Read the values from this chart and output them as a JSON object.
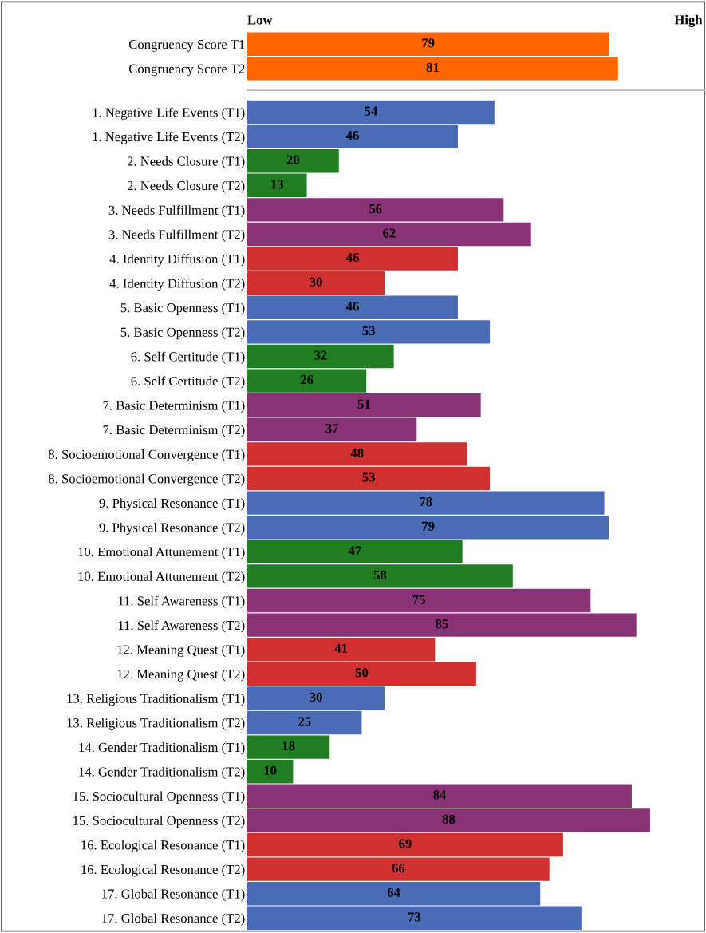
{
  "chart_data": [
    {
      "type": "bar",
      "orientation": "horizontal",
      "categories": [
        "Congruency Score T1",
        "Congruency Score T2"
      ],
      "values": [
        79,
        81
      ],
      "color": "#ff6600",
      "annotations": [
        "Low",
        "High"
      ],
      "data_labels": true,
      "grid": false,
      "legend": false
    },
    {
      "type": "bar",
      "orientation": "horizontal",
      "tick_labels": "y",
      "data_labels": true,
      "grid": false,
      "legend": false,
      "categories": [
        "1. Negative Life Events (T1)",
        "1. Negative Life Events (T2)",
        "2. Needs Closure (T1)",
        "2. Needs Closure (T2)",
        "3. Needs Fulfillment (T1)",
        "3. Needs Fulfillment (T2)",
        "4. Identity Diffusion (T1)",
        "4. Identity Diffusion (T2)",
        "5. Basic Openness (T1)",
        "5. Basic Openness (T2)",
        "6. Self Certitude (T1)",
        "6. Self Certitude (T2)",
        "7. Basic Determinism (T1)",
        "7. Basic Determinism (T2)",
        "8. Socioemotional Convergence (T1)",
        "8. Socioemotional Convergence (T2)",
        "9. Physical Resonance (T1)",
        "9. Physical Resonance (T2)",
        "10. Emotional Attunement (T1)",
        "10. Emotional Attunement (T2)",
        "11. Self Awareness (T1)",
        "11. Self Awareness (T2)",
        "12. Meaning Quest (T1)",
        "12. Meaning Quest (T2)",
        "13. Religious Traditionalism (T1)",
        "13. Religious Traditionalism (T2)",
        "14. Gender Traditionalism (T1)",
        "14. Gender Traditionalism (T2)",
        "15. Sociocultural Openness (T1)",
        "15. Sociocultural Openness (T2)",
        "16. Ecological Resonance (T1)",
        "16. Ecological Resonance (T2)",
        "17. Global Resonance (T1)",
        "17. Global Resonance (T2)"
      ],
      "values": [
        54,
        46,
        20,
        13,
        56,
        62,
        46,
        30,
        46,
        53,
        32,
        26,
        51,
        37,
        48,
        53,
        78,
        79,
        47,
        58,
        75,
        85,
        41,
        50,
        30,
        25,
        18,
        10,
        84,
        88,
        69,
        66,
        64,
        73
      ],
      "colors": [
        "#4a6cb6",
        "#4a6cb6",
        "#217d22",
        "#217d22",
        "#8a3276",
        "#8a3276",
        "#d03030",
        "#d03030",
        "#4a6cb6",
        "#4a6cb6",
        "#217d22",
        "#217d22",
        "#8a3276",
        "#8a3276",
        "#d03030",
        "#d03030",
        "#4a6cb6",
        "#4a6cb6",
        "#217d22",
        "#217d22",
        "#8a3276",
        "#8a3276",
        "#d03030",
        "#d03030",
        "#4a6cb6",
        "#4a6cb6",
        "#217d22",
        "#217d22",
        "#8a3276",
        "#8a3276",
        "#d03030",
        "#d03030",
        "#4a6cb6",
        "#4a6cb6"
      ]
    }
  ]
}
